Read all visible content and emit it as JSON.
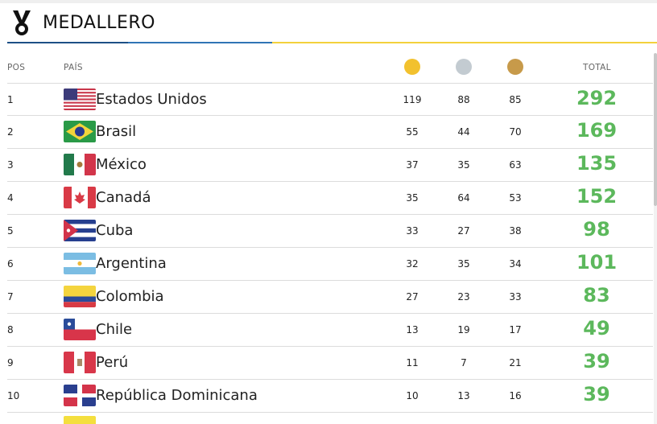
{
  "header": {
    "title": "MEDALLERO",
    "icon": "medal-icon"
  },
  "columns": {
    "pos": "POS",
    "pais": "PAÍS",
    "total": "TOTAL"
  },
  "medal_colors": {
    "gold": "#f2c12e",
    "silver": "#c3cbd1",
    "bronze": "#c79a4a"
  },
  "total_color": "#5cb85c",
  "rows": [
    {
      "pos": "1",
      "country": "Estados Unidos",
      "flag": "usa-flag-icon",
      "gold": "119",
      "silver": "88",
      "bronze": "85",
      "total": "292"
    },
    {
      "pos": "2",
      "country": "Brasil",
      "flag": "brazil-flag-icon",
      "gold": "55",
      "silver": "44",
      "bronze": "70",
      "total": "169"
    },
    {
      "pos": "3",
      "country": "México",
      "flag": "mexico-flag-icon",
      "gold": "37",
      "silver": "35",
      "bronze": "63",
      "total": "135"
    },
    {
      "pos": "4",
      "country": "Canadá",
      "flag": "canada-flag-icon",
      "gold": "35",
      "silver": "64",
      "bronze": "53",
      "total": "152"
    },
    {
      "pos": "5",
      "country": "Cuba",
      "flag": "cuba-flag-icon",
      "gold": "33",
      "silver": "27",
      "bronze": "38",
      "total": "98"
    },
    {
      "pos": "6",
      "country": "Argentina",
      "flag": "argentina-flag-icon",
      "gold": "32",
      "silver": "35",
      "bronze": "34",
      "total": "101"
    },
    {
      "pos": "7",
      "country": "Colombia",
      "flag": "colombia-flag-icon",
      "gold": "27",
      "silver": "23",
      "bronze": "33",
      "total": "83"
    },
    {
      "pos": "8",
      "country": "Chile",
      "flag": "chile-flag-icon",
      "gold": "13",
      "silver": "19",
      "bronze": "17",
      "total": "49"
    },
    {
      "pos": "9",
      "country": "Perú",
      "flag": "peru-flag-icon",
      "gold": "11",
      "silver": "7",
      "bronze": "21",
      "total": "39"
    },
    {
      "pos": "10",
      "country": "República Dominicana",
      "flag": "dominican-republic-flag-icon",
      "gold": "10",
      "silver": "13",
      "bronze": "16",
      "total": "39"
    }
  ]
}
